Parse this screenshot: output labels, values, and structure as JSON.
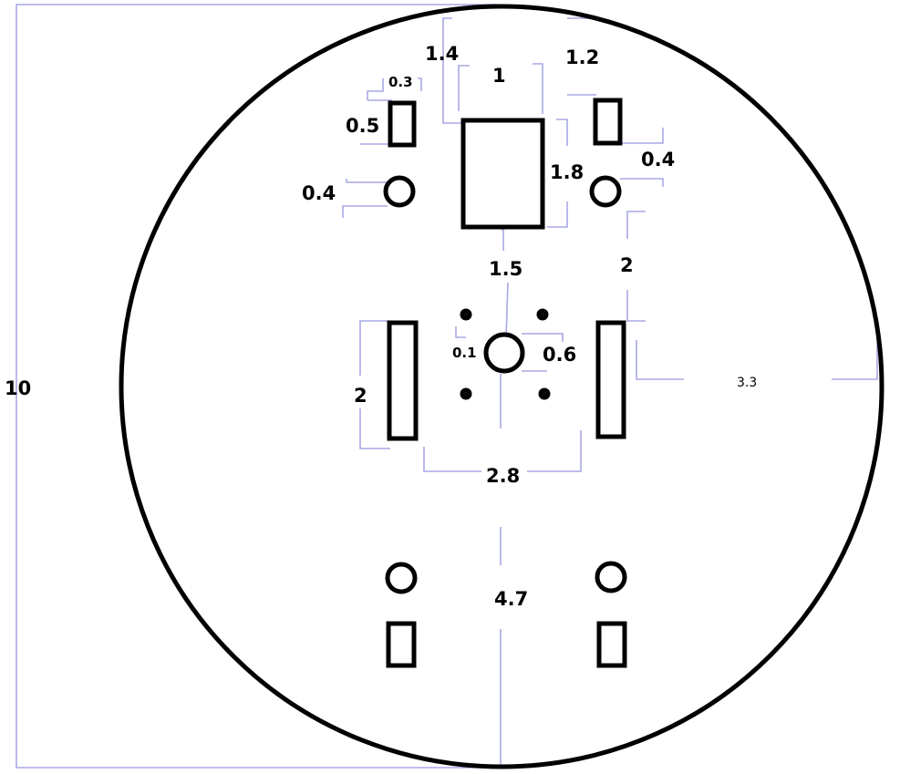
{
  "dimensions": {
    "overall_diameter": "10",
    "top_left_gap": "1.4",
    "top_rect_width": "1",
    "top_right_gap": "1.2",
    "small_rect_width": "0.3",
    "small_rect_height": "0.5",
    "left_hole_diameter": "0.4",
    "right_hole_diameter": "0.4",
    "top_rect_height": "1.8",
    "center_gap": "1.5",
    "right_offset": "2",
    "left_slot_length": "2",
    "small_hole_diameter": "0.1",
    "center_hole_diameter": "0.6",
    "radius_offset": "3.3",
    "slot_spacing": "2.8",
    "lower_distance": "4.7"
  },
  "colors": {
    "outline": "#000000",
    "dimension_line": "#a8a8e6"
  }
}
